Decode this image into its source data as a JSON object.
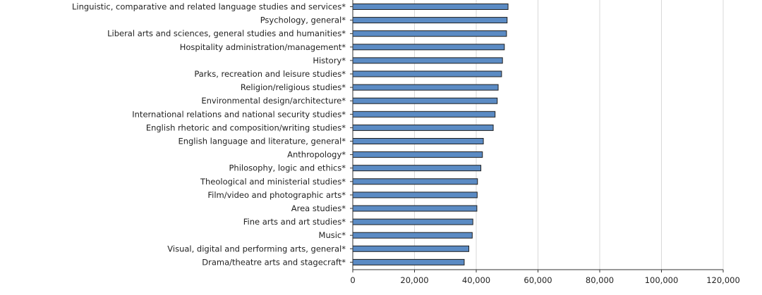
{
  "chart_data": {
    "type": "bar",
    "orientation": "horizontal",
    "categories": [
      "Linguistic, comparative and related language studies and services*",
      "Psychology, general*",
      "Liberal arts and sciences, general studies and humanities*",
      "Hospitality administration/management*",
      "History*",
      "Parks, recreation and leisure studies*",
      "Religion/religious studies*",
      "Environmental design/architecture*",
      "International relations and national security studies*",
      "English rhetoric and composition/writing studies*",
      "English language and literature, general*",
      "Anthropology*",
      "Philosophy, logic and ethics*",
      "Theological and ministerial studies*",
      "Film/video and photographic arts*",
      "Area studies*",
      "Fine arts and art studies*",
      "Music*",
      "Visual, digital and performing arts, general*",
      "Drama/theatre arts and stagecraft*"
    ],
    "values": [
      50300,
      50000,
      49800,
      49100,
      48500,
      48200,
      47100,
      46800,
      46100,
      45500,
      42300,
      42000,
      41500,
      40400,
      40300,
      40200,
      38900,
      38700,
      37600,
      36100
    ],
    "xlim": [
      0,
      120000
    ],
    "xticks": [
      "0",
      "20,000",
      "40,000",
      "60,000",
      "80,000",
      "100,000",
      "120,000"
    ],
    "grid": true,
    "colors": {
      "bar_fill": "#5b8bc4",
      "bar_stroke": "#1f1f1f",
      "grid": "#d9d9d9",
      "axis": "#333333"
    }
  }
}
